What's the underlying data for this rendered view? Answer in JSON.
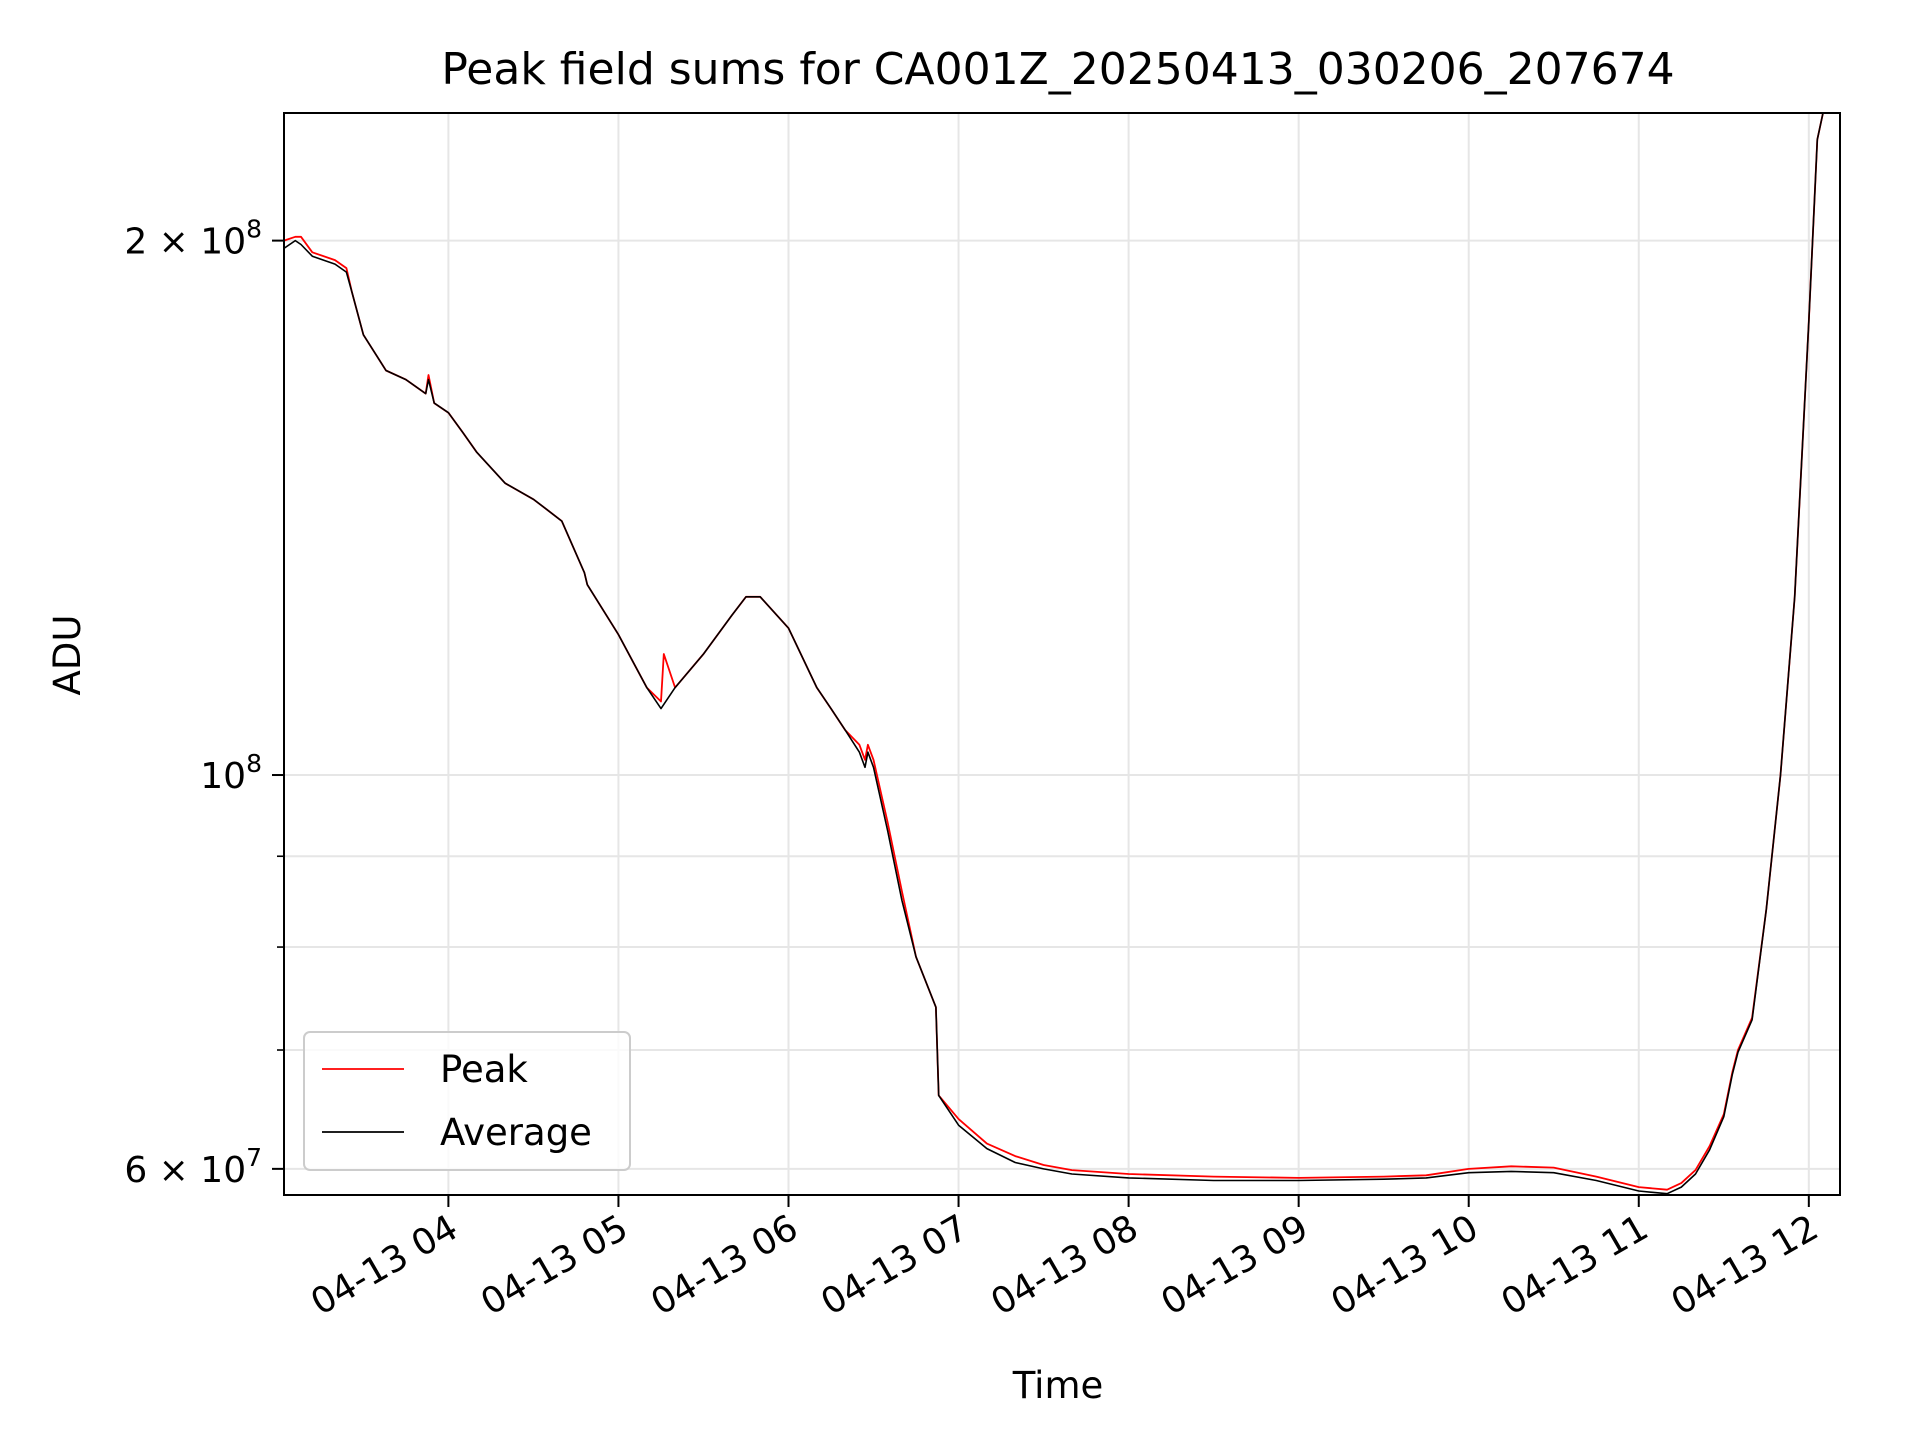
{
  "chart_data": {
    "type": "line",
    "title": "Peak field sums for CA001Z_20250413_030206_207674",
    "xlabel": "Time",
    "ylabel": "ADU",
    "yscale": "log",
    "x_start": "2025-04-13 03:02",
    "x_end": "2025-04-13 12:11",
    "ylim": [
      58000000,
      236000000
    ],
    "grid": true,
    "legend_position": "lower-left",
    "x_ticks": [
      {
        "time": "2025-04-13 04:00",
        "label": "04-13 04"
      },
      {
        "time": "2025-04-13 05:00",
        "label": "04-13 05"
      },
      {
        "time": "2025-04-13 06:00",
        "label": "04-13 06"
      },
      {
        "time": "2025-04-13 07:00",
        "label": "04-13 07"
      },
      {
        "time": "2025-04-13 08:00",
        "label": "04-13 08"
      },
      {
        "time": "2025-04-13 09:00",
        "label": "04-13 09"
      },
      {
        "time": "2025-04-13 10:00",
        "label": "04-13 10"
      },
      {
        "time": "2025-04-13 11:00",
        "label": "04-13 11"
      },
      {
        "time": "2025-04-13 12:00",
        "label": "04-13 12"
      }
    ],
    "y_ticks": [
      {
        "value": 60000000,
        "label_base": "6 × 10",
        "label_exp": "7"
      },
      {
        "value": 100000000,
        "label_base": "10",
        "label_exp": "8"
      },
      {
        "value": 200000000,
        "label_base": "2 × 10",
        "label_exp": "8"
      }
    ],
    "y_minor_ticks": [
      70000000,
      80000000,
      90000000
    ],
    "series": [
      {
        "name": "Peak",
        "color": "#ff0000",
        "x": [
          "03:02",
          "03:06",
          "03:08",
          "03:12",
          "03:20",
          "03:24",
          "03:26",
          "03:30",
          "03:38",
          "03:45",
          "03:52",
          "03:53",
          "03:55",
          "04:00",
          "04:05",
          "04:10",
          "04:20",
          "04:30",
          "04:35",
          "04:40",
          "04:48",
          "04:49",
          "05:00",
          "05:10",
          "05:15",
          "05:16",
          "05:20",
          "05:30",
          "05:40",
          "05:45",
          "05:50",
          "06:00",
          "06:10",
          "06:15",
          "06:20",
          "06:25",
          "06:27",
          "06:28",
          "06:30",
          "06:35",
          "06:40",
          "06:45",
          "06:52",
          "06:53",
          "07:00",
          "07:10",
          "07:20",
          "07:30",
          "07:40",
          "08:00",
          "08:30",
          "09:00",
          "09:30",
          "09:45",
          "10:00",
          "10:15",
          "10:30",
          "10:45",
          "11:00",
          "11:10",
          "11:15",
          "11:20",
          "11:25",
          "11:30",
          "11:33",
          "11:35",
          "11:40",
          "11:45",
          "11:50",
          "11:55",
          "12:00",
          "12:03",
          "12:05"
        ],
        "values": [
          200000000,
          201000000,
          201000000,
          197000000,
          195000000,
          193000000,
          187000000,
          177000000,
          169000000,
          167000000,
          164000000,
          168000000,
          162000000,
          160000000,
          156000000,
          152000000,
          146000000,
          143000000,
          141000000,
          139000000,
          130000000,
          128000000,
          120000000,
          112000000,
          110000000,
          117000000,
          112000000,
          117000000,
          123000000,
          126000000,
          126000000,
          121000000,
          112000000,
          109000000,
          106000000,
          104000000,
          102000000,
          104000000,
          102000000,
          94000000,
          86000000,
          79000000,
          74000000,
          66000000,
          64000000,
          62000000,
          61000000,
          60300000,
          59900000,
          59600000,
          59400000,
          59300000,
          59400000,
          59500000,
          60000000,
          60200000,
          60100000,
          59400000,
          58600000,
          58400000,
          58900000,
          59900000,
          61800000,
          64400000,
          68000000,
          70000000,
          73000000,
          84000000,
          100000000,
          126000000,
          180000000,
          228000000,
          236000000
        ]
      },
      {
        "name": "Average",
        "color": "#000000",
        "x": [
          "03:02",
          "03:06",
          "03:08",
          "03:12",
          "03:20",
          "03:24",
          "03:26",
          "03:30",
          "03:38",
          "03:45",
          "03:52",
          "03:53",
          "03:55",
          "04:00",
          "04:05",
          "04:10",
          "04:20",
          "04:30",
          "04:35",
          "04:40",
          "04:48",
          "04:49",
          "05:00",
          "05:10",
          "05:15",
          "05:20",
          "05:30",
          "05:40",
          "05:45",
          "05:50",
          "06:00",
          "06:10",
          "06:15",
          "06:20",
          "06:25",
          "06:27",
          "06:28",
          "06:30",
          "06:35",
          "06:40",
          "06:45",
          "06:52",
          "06:53",
          "07:00",
          "07:10",
          "07:20",
          "07:30",
          "07:40",
          "08:00",
          "08:30",
          "09:00",
          "09:30",
          "09:45",
          "10:00",
          "10:15",
          "10:30",
          "10:45",
          "11:00",
          "11:10",
          "11:15",
          "11:20",
          "11:25",
          "11:30",
          "11:33",
          "11:35",
          "11:40",
          "11:45",
          "11:50",
          "11:55",
          "12:00",
          "12:03",
          "12:05"
        ],
        "values": [
          198000000,
          200000000,
          199000000,
          196000000,
          194000000,
          192000000,
          187000000,
          177000000,
          169000000,
          167000000,
          164000000,
          167000000,
          162000000,
          160000000,
          156000000,
          152000000,
          146000000,
          143000000,
          141000000,
          139000000,
          130000000,
          128000000,
          120000000,
          112000000,
          109000000,
          112000000,
          117000000,
          123000000,
          126000000,
          126000000,
          121000000,
          112000000,
          109000000,
          106000000,
          103000000,
          101000000,
          103000000,
          101000000,
          93000000,
          85000000,
          79000000,
          74000000,
          66000000,
          63500000,
          61600000,
          60500000,
          60000000,
          59600000,
          59300000,
          59100000,
          59100000,
          59200000,
          59300000,
          59700000,
          59800000,
          59700000,
          59100000,
          58300000,
          58100000,
          58600000,
          59600000,
          61500000,
          64200000,
          67800000,
          69800000,
          72800000,
          84000000,
          100000000,
          126000000,
          180000000,
          228000000,
          236000000
        ]
      }
    ]
  }
}
